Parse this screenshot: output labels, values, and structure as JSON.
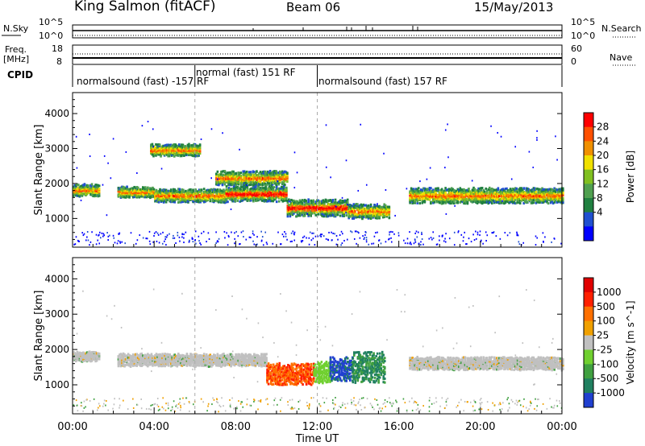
{
  "header": {
    "station": "King Salmon (fitACF)",
    "beam": "Beam 06",
    "date": "15/May/2013"
  },
  "left_labels": {
    "nsky": "N.Sky",
    "freq": "Freq.",
    "freq_unit": "[MHz]",
    "cpid": "CPID"
  },
  "right_labels": {
    "nsearch": "N.Search",
    "nave": "Nave"
  },
  "noise_axes": {
    "left_top": "10^5",
    "left_bottom": "10^0",
    "right_top": "10^5",
    "right_bottom": "10^0"
  },
  "freq_axes": {
    "left_top": "18",
    "left_bottom": "8",
    "right_top": "60",
    "right_bottom": "0"
  },
  "cpid_segments": [
    {
      "label": "normalsound (fast) -157 RF",
      "start_h": 0,
      "end_h": 6
    },
    {
      "label": "normal (fast) 151 RF",
      "start_h": 6,
      "end_h": 12
    },
    {
      "label": "normalsound (fast) 157 RF",
      "start_h": 12,
      "end_h": 24
    }
  ],
  "chart_data": [
    {
      "type": "heatmap",
      "name": "power",
      "ylabel": "Slant Range [km]",
      "xlabel": "Time UT",
      "xlim_hours": [
        0,
        24
      ],
      "ylim_km": [
        180,
        4600
      ],
      "y_ticks": [
        "1000",
        "2000",
        "3000",
        "4000"
      ],
      "colorbar": {
        "label": "Power [dB]",
        "ticks": [
          "28",
          "24",
          "20",
          "16",
          "12",
          "8",
          "4"
        ],
        "colors": [
          "#0000ff",
          "#2050d0",
          "#208040",
          "#50a050",
          "#80c020",
          "#f0e000",
          "#f09000",
          "#ff5000",
          "#ff0000"
        ]
      },
      "echo_bands": [
        {
          "start_h": 0.0,
          "end_h": 1.3,
          "center_km": 1800,
          "width_km": 250
        },
        {
          "start_h": 2.2,
          "end_h": 4.0,
          "center_km": 1750,
          "width_km": 220
        },
        {
          "start_h": 4.0,
          "end_h": 7.5,
          "center_km": 1650,
          "width_km": 280
        },
        {
          "start_h": 7.5,
          "end_h": 10.5,
          "center_km": 1700,
          "width_km": 320
        },
        {
          "start_h": 10.5,
          "end_h": 13.5,
          "center_km": 1300,
          "width_km": 350
        },
        {
          "start_h": 3.8,
          "end_h": 6.2,
          "center_km": 2950,
          "width_km": 250
        },
        {
          "start_h": 7.0,
          "end_h": 10.5,
          "center_km": 2150,
          "width_km": 300
        },
        {
          "start_h": 13.5,
          "end_h": 15.5,
          "center_km": 1200,
          "width_km": 300
        },
        {
          "start_h": 16.5,
          "end_h": 24.0,
          "center_km": 1650,
          "width_km": 320
        }
      ]
    },
    {
      "type": "heatmap",
      "name": "velocity",
      "ylabel": "Slant Range [km]",
      "xlabel": "Time UT",
      "xlim_hours": [
        0,
        24
      ],
      "ylim_km": [
        180,
        4600
      ],
      "y_ticks": [
        "1000",
        "2000",
        "3000",
        "4000"
      ],
      "colorbar": {
        "label": "Velocity [m s^-1]",
        "ticks": [
          "1000",
          "500",
          "100",
          "25",
          "-25",
          "-100",
          "-500",
          "-1000"
        ],
        "colors": [
          "#2040d0",
          "#208060",
          "#40a040",
          "#70d030",
          "#c0c0c0",
          "#f0a000",
          "#ff7000",
          "#ff2000",
          "#e00000"
        ]
      },
      "echo_bands": [
        {
          "start_h": 0.0,
          "end_h": 1.3,
          "center_km": 1800,
          "width_km": 200
        },
        {
          "start_h": 2.2,
          "end_h": 9.5,
          "center_km": 1700,
          "width_km": 260
        },
        {
          "start_h": 9.5,
          "end_h": 11.8,
          "center_km": 1300,
          "width_km": 450
        },
        {
          "start_h": 11.8,
          "end_h": 12.6,
          "center_km": 1350,
          "width_km": 450
        },
        {
          "start_h": 12.6,
          "end_h": 13.7,
          "center_km": 1450,
          "width_km": 500
        },
        {
          "start_h": 13.7,
          "end_h": 15.3,
          "center_km": 1500,
          "width_km": 650
        },
        {
          "start_h": 16.5,
          "end_h": 24.0,
          "center_km": 1600,
          "width_km": 260
        }
      ]
    }
  ],
  "time_axis": {
    "labels": [
      "00:00",
      "04:00",
      "08:00",
      "12:00",
      "16:00",
      "20:00",
      "00:00"
    ],
    "title": "Time UT"
  }
}
